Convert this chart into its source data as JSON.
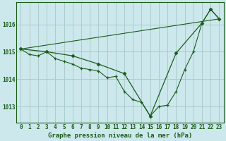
{
  "title": "Graphe pression niveau de la mer (hPa)",
  "background_color": "#cce8ec",
  "grid_color": "#aacccc",
  "line_color": "#1a5c1a",
  "xlim": [
    -0.5,
    23.5
  ],
  "ylim": [
    1012.4,
    1016.8
  ],
  "yticks": [
    1013,
    1014,
    1015,
    1016
  ],
  "xticks": [
    0,
    1,
    2,
    3,
    4,
    5,
    6,
    7,
    8,
    9,
    10,
    11,
    12,
    13,
    14,
    15,
    16,
    17,
    18,
    19,
    20,
    21,
    22,
    23
  ],
  "series1_x": [
    0,
    1,
    2,
    3,
    4,
    5,
    6,
    7,
    8,
    9,
    10,
    11,
    12,
    13,
    14,
    15,
    16,
    17,
    18,
    19,
    20,
    21,
    22,
    23
  ],
  "series1_y": [
    1015.1,
    1014.9,
    1014.85,
    1015.0,
    1014.75,
    1014.65,
    1014.55,
    1014.4,
    1014.35,
    1014.3,
    1014.05,
    1014.1,
    1013.55,
    1013.25,
    1013.15,
    1012.65,
    1013.0,
    1013.05,
    1013.55,
    1014.35,
    1015.0,
    1016.05,
    1016.55,
    1016.2
  ],
  "series2_x": [
    0,
    3,
    6,
    9,
    12,
    15,
    18,
    21,
    22,
    23
  ],
  "series2_y": [
    1015.1,
    1015.0,
    1014.85,
    1014.55,
    1014.2,
    1012.65,
    1014.95,
    1016.05,
    1016.55,
    1016.2
  ],
  "series3_x": [
    0,
    23
  ],
  "series3_y": [
    1015.1,
    1016.2
  ],
  "xlabel_fontsize": 6.5,
  "tick_fontsize": 5.5
}
